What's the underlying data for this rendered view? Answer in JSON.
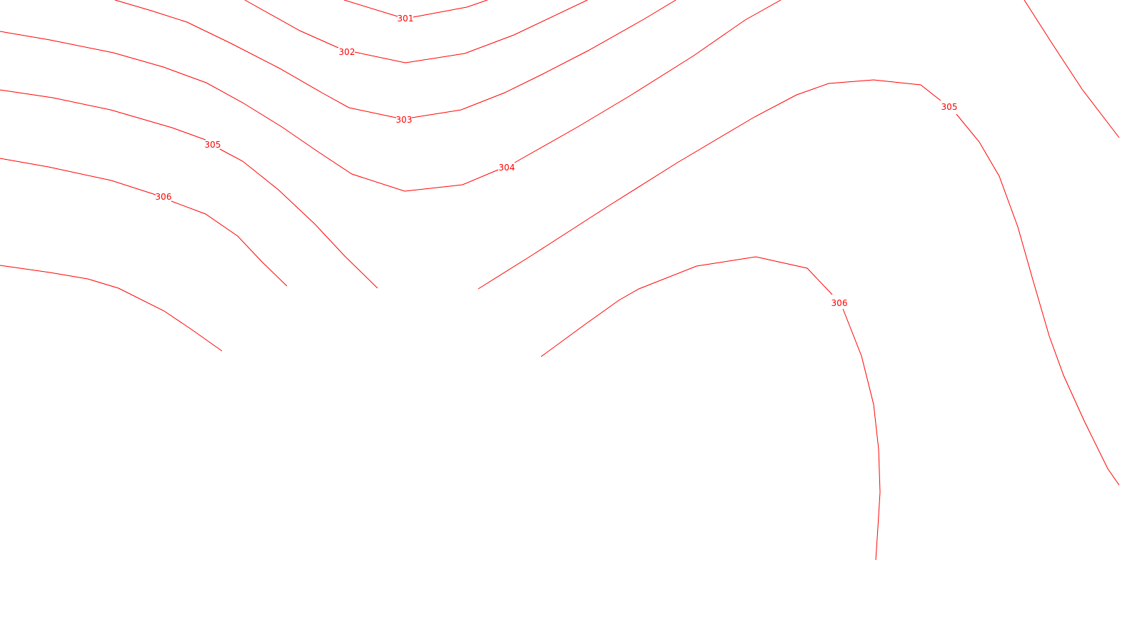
{
  "map": {
    "contour_color": "#ff0000",
    "contour_labels": {
      "c301": "301",
      "c302": "302",
      "c303": "303",
      "c304": "304",
      "c305_left": "305",
      "c305_right": "305",
      "c306_left": "306",
      "c306_right": "306"
    }
  }
}
